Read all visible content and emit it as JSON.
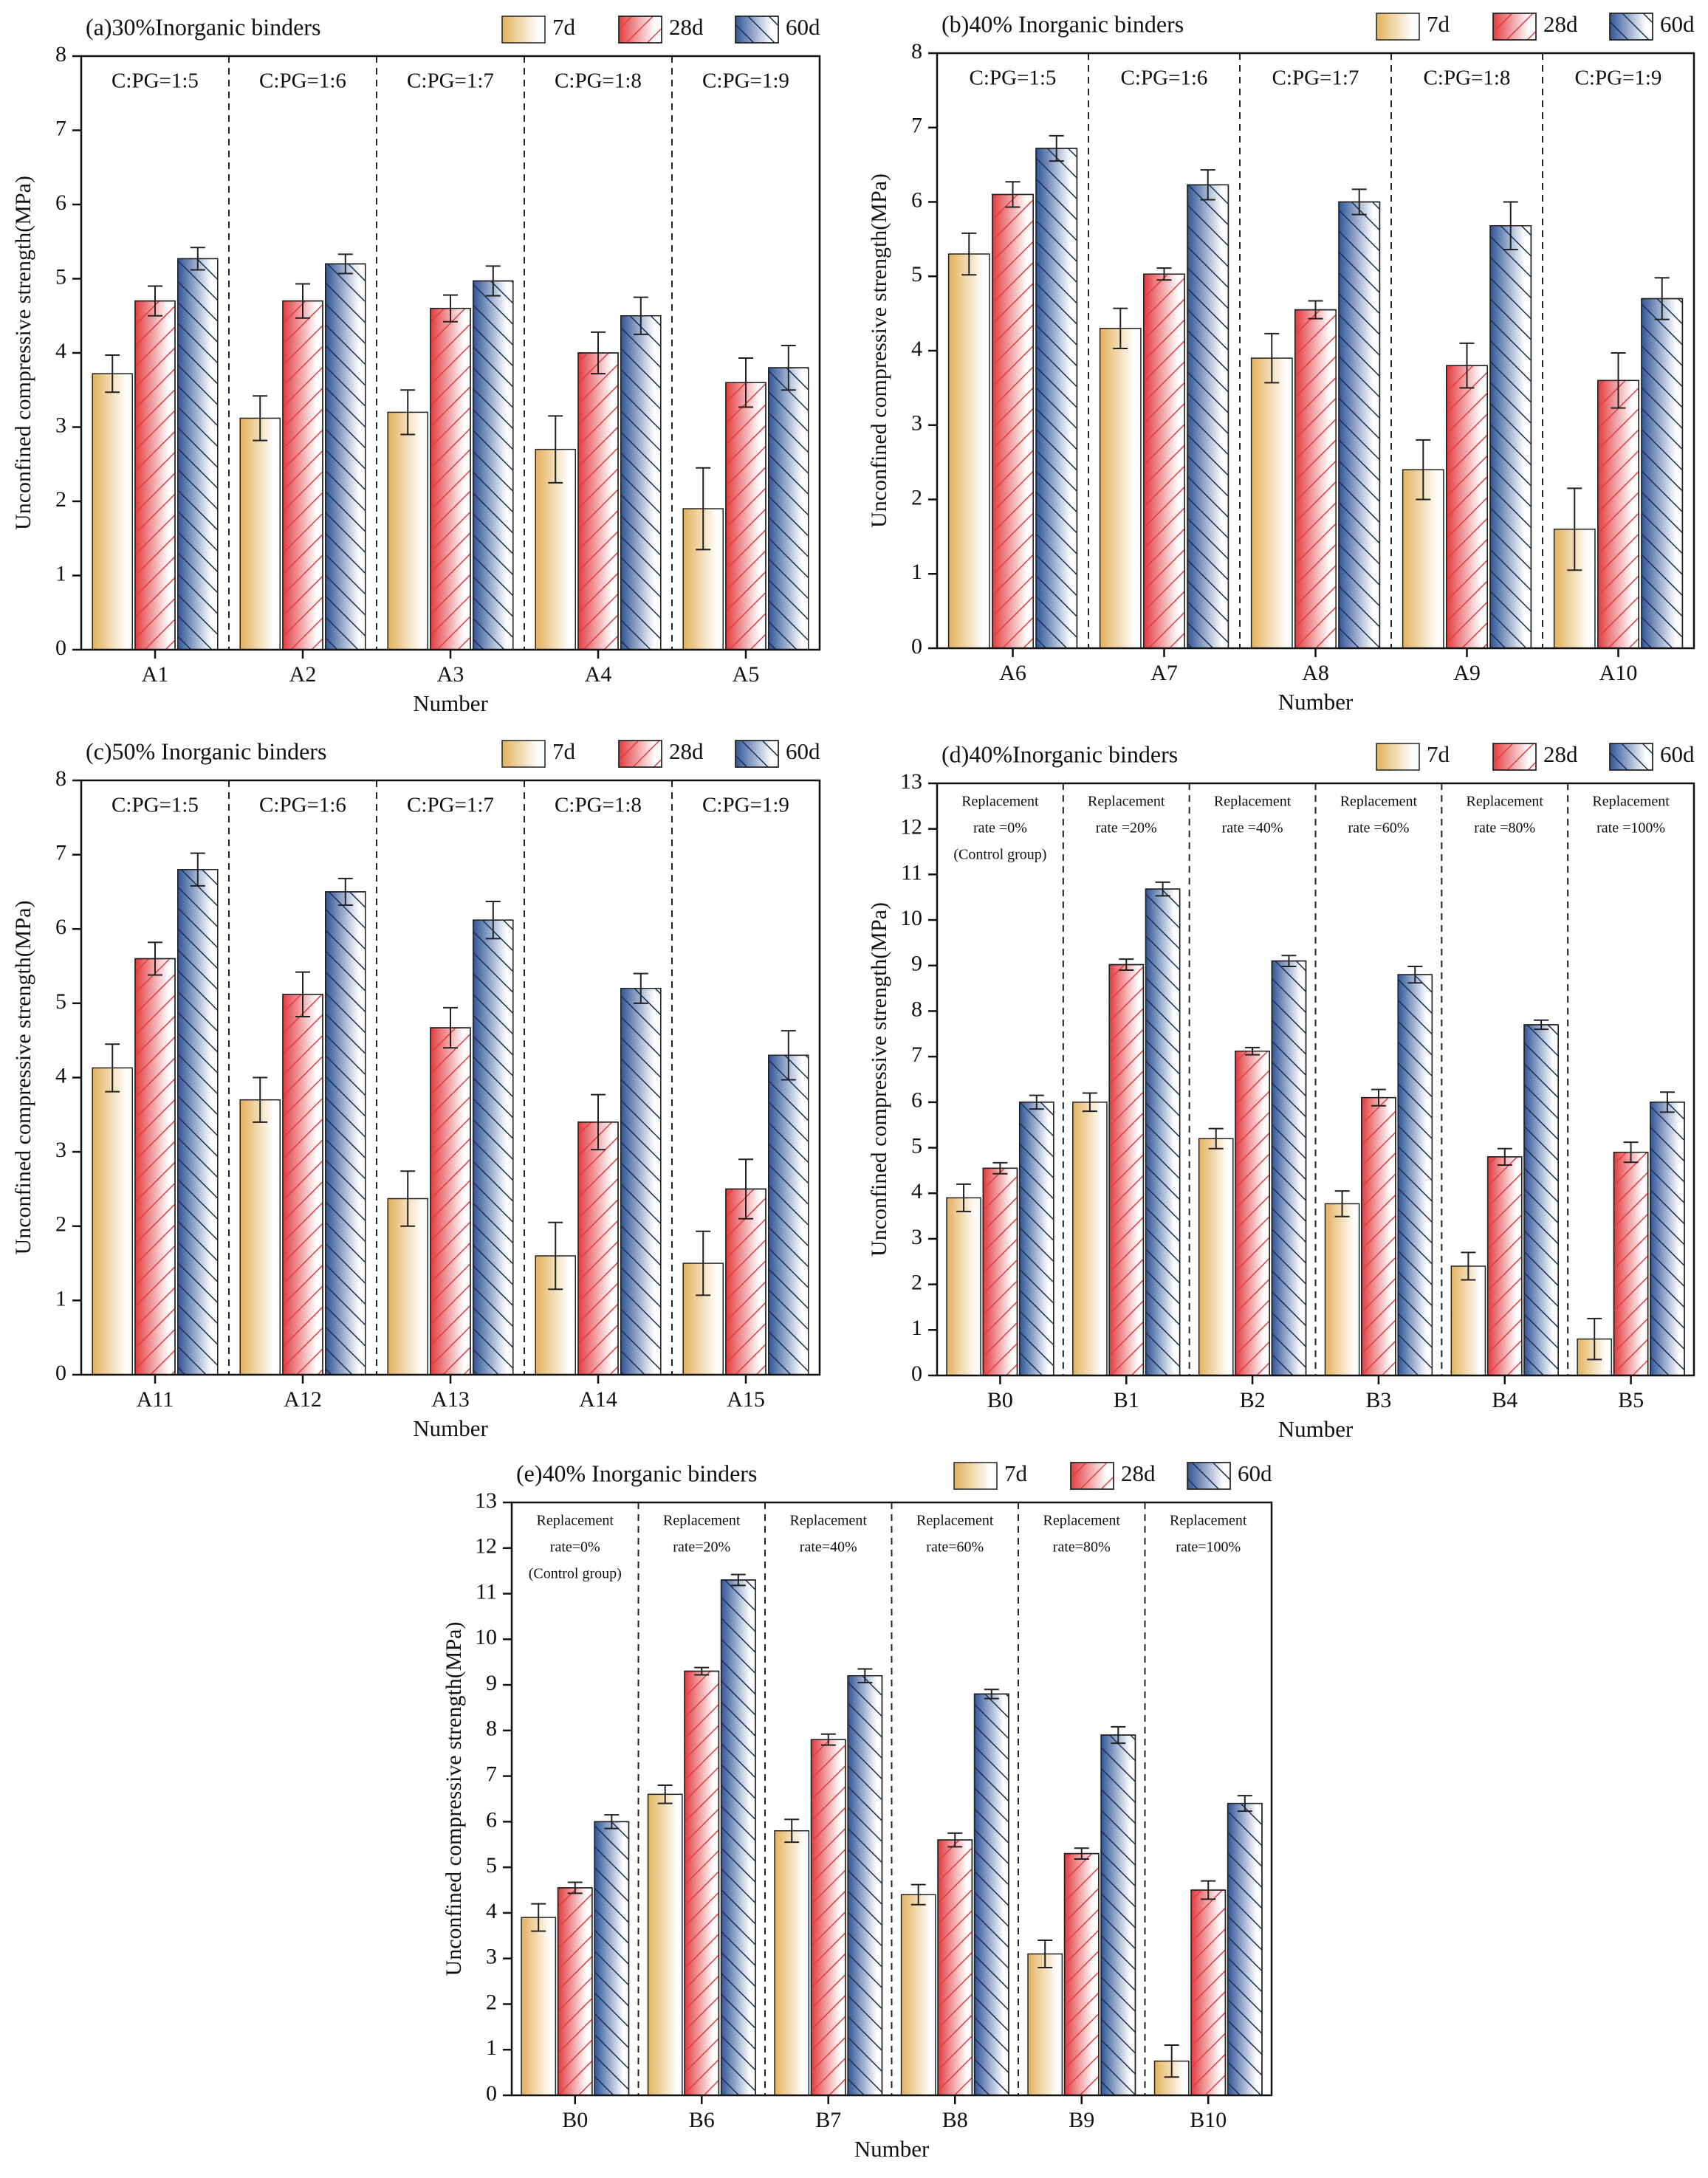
{
  "chart_data": [
    {
      "type": "bar",
      "title": "(a)30%Inorganic binders",
      "xlabel": "Number",
      "ylabel": "Unconfined compressive strength(MPa)",
      "categories": [
        "A1",
        "A2",
        "A3",
        "A4",
        "A5"
      ],
      "annotations": [
        [
          "C:PG=1:5"
        ],
        [
          "C:PG=1:6"
        ],
        [
          "C:PG=1:7"
        ],
        [
          "C:PG=1:8"
        ],
        [
          "C:PG=1:9"
        ]
      ],
      "series": [
        {
          "name": "7d",
          "color": "#e3b15c",
          "hatch": "none",
          "values": [
            3.72,
            3.12,
            3.2,
            2.7,
            1.9
          ],
          "errors": [
            0.25,
            0.3,
            0.3,
            0.45,
            0.55
          ]
        },
        {
          "name": "28d",
          "color": "#e23b3f",
          "hatch": "forward",
          "values": [
            4.7,
            4.7,
            4.6,
            4.0,
            3.6
          ],
          "errors": [
            0.2,
            0.23,
            0.18,
            0.28,
            0.33
          ]
        },
        {
          "name": "60d",
          "color": "#2f5597",
          "hatch": "back",
          "values": [
            5.27,
            5.2,
            4.97,
            4.5,
            3.8
          ],
          "errors": [
            0.15,
            0.13,
            0.2,
            0.25,
            0.3
          ]
        }
      ],
      "ylim": [
        0,
        8
      ],
      "yticks": [
        0,
        1,
        2,
        3,
        4,
        5,
        6,
        7,
        8
      ]
    },
    {
      "type": "bar",
      "title": "(b)40% Inorganic binders",
      "xlabel": "Number",
      "ylabel": "Unconfined compressive strength(MPa)",
      "categories": [
        "A6",
        "A7",
        "A8",
        "A9",
        "A10"
      ],
      "annotations": [
        [
          "C:PG=1:5"
        ],
        [
          "C:PG=1:6"
        ],
        [
          "C:PG=1:7"
        ],
        [
          "C:PG=1:8"
        ],
        [
          "C:PG=1:9"
        ]
      ],
      "series": [
        {
          "name": "7d",
          "color": "#e3b15c",
          "hatch": "none",
          "values": [
            5.3,
            4.3,
            3.9,
            2.4,
            1.6
          ],
          "errors": [
            0.28,
            0.27,
            0.33,
            0.4,
            0.55
          ]
        },
        {
          "name": "28d",
          "color": "#e23b3f",
          "hatch": "forward",
          "values": [
            6.1,
            5.03,
            4.55,
            3.8,
            3.6
          ],
          "errors": [
            0.17,
            0.08,
            0.12,
            0.3,
            0.37
          ]
        },
        {
          "name": "60d",
          "color": "#2f5597",
          "hatch": "back",
          "values": [
            6.72,
            6.23,
            6.0,
            5.68,
            4.7
          ],
          "errors": [
            0.17,
            0.2,
            0.17,
            0.32,
            0.28
          ]
        }
      ],
      "ylim": [
        0,
        8
      ],
      "yticks": [
        0,
        1,
        2,
        3,
        4,
        5,
        6,
        7,
        8
      ]
    },
    {
      "type": "bar",
      "title": "(c)50% Inorganic binders",
      "xlabel": "Number",
      "ylabel": "Unconfined compressive strength(MPa)",
      "categories": [
        "A11",
        "A12",
        "A13",
        "A14",
        "A15"
      ],
      "annotations": [
        [
          "C:PG=1:5"
        ],
        [
          "C:PG=1:6"
        ],
        [
          "C:PG=1:7"
        ],
        [
          "C:PG=1:8"
        ],
        [
          "C:PG=1:9"
        ]
      ],
      "series": [
        {
          "name": "7d",
          "color": "#e3b15c",
          "hatch": "none",
          "values": [
            4.13,
            3.7,
            2.37,
            1.6,
            1.5
          ],
          "errors": [
            0.32,
            0.3,
            0.37,
            0.45,
            0.43
          ]
        },
        {
          "name": "28d",
          "color": "#e23b3f",
          "hatch": "forward",
          "values": [
            5.6,
            5.12,
            4.67,
            3.4,
            2.5
          ],
          "errors": [
            0.22,
            0.3,
            0.27,
            0.37,
            0.4
          ]
        },
        {
          "name": "60d",
          "color": "#2f5597",
          "hatch": "back",
          "values": [
            6.8,
            6.5,
            6.12,
            5.2,
            4.3
          ],
          "errors": [
            0.22,
            0.18,
            0.25,
            0.2,
            0.33
          ]
        }
      ],
      "ylim": [
        0,
        8
      ],
      "yticks": [
        0,
        1,
        2,
        3,
        4,
        5,
        6,
        7,
        8
      ]
    },
    {
      "type": "bar",
      "title": "(d)40%Inorganic binders",
      "xlabel": "Number",
      "ylabel": "Unconfined compressive strength(MPa)",
      "categories": [
        "B0",
        "B1",
        "B2",
        "B3",
        "B4",
        "B5"
      ],
      "annotations": [
        [
          "Replacement",
          "rate =0%",
          "(Control group)"
        ],
        [
          "Replacement",
          "rate =20%"
        ],
        [
          "Replacement",
          "rate =40%"
        ],
        [
          "Replacement",
          "rate =60%"
        ],
        [
          "Replacement",
          "rate =80%"
        ],
        [
          "Replacement",
          "rate =100%"
        ]
      ],
      "series": [
        {
          "name": "7d",
          "color": "#e3b15c",
          "hatch": "none",
          "values": [
            3.9,
            6.0,
            5.2,
            3.77,
            2.4,
            0.8
          ],
          "errors": [
            0.3,
            0.2,
            0.22,
            0.28,
            0.3,
            0.45
          ]
        },
        {
          "name": "28d",
          "color": "#e23b3f",
          "hatch": "forward",
          "values": [
            4.55,
            9.02,
            7.12,
            6.1,
            4.8,
            4.9
          ],
          "errors": [
            0.12,
            0.12,
            0.08,
            0.18,
            0.18,
            0.22
          ]
        },
        {
          "name": "60d",
          "color": "#2f5597",
          "hatch": "back",
          "values": [
            6.0,
            10.68,
            9.1,
            8.8,
            7.7,
            6.0
          ],
          "errors": [
            0.15,
            0.15,
            0.12,
            0.18,
            0.1,
            0.22
          ]
        }
      ],
      "ylim": [
        0,
        13
      ],
      "yticks": [
        0,
        1,
        2,
        3,
        4,
        5,
        6,
        7,
        8,
        9,
        10,
        11,
        12,
        13
      ]
    },
    {
      "type": "bar",
      "title": "(e)40% Inorganic binders",
      "xlabel": "Number",
      "ylabel": "Unconfined compressive strength(MPa)",
      "categories": [
        "B0",
        "B6",
        "B7",
        "B8",
        "B9",
        "B10"
      ],
      "annotations": [
        [
          "Replacement",
          "rate=0%",
          "(Control group)"
        ],
        [
          "Replacement",
          "rate=20%"
        ],
        [
          "Replacement",
          "rate=40%"
        ],
        [
          "Replacement",
          "rate=60%"
        ],
        [
          "Replacement",
          "rate=80%"
        ],
        [
          "Replacement",
          "rate=100%"
        ]
      ],
      "series": [
        {
          "name": "7d",
          "color": "#e3b15c",
          "hatch": "none",
          "values": [
            3.9,
            6.6,
            5.8,
            4.4,
            3.1,
            0.75
          ],
          "errors": [
            0.3,
            0.2,
            0.25,
            0.22,
            0.3,
            0.35
          ]
        },
        {
          "name": "28d",
          "color": "#e23b3f",
          "hatch": "forward",
          "values": [
            4.55,
            9.3,
            7.8,
            5.6,
            5.3,
            4.5
          ],
          "errors": [
            0.12,
            0.08,
            0.12,
            0.15,
            0.12,
            0.2
          ]
        },
        {
          "name": "60d",
          "color": "#2f5597",
          "hatch": "back",
          "values": [
            6.0,
            11.3,
            9.2,
            8.8,
            7.9,
            6.4
          ],
          "errors": [
            0.15,
            0.12,
            0.15,
            0.1,
            0.18,
            0.17
          ]
        }
      ],
      "ylim": [
        0,
        13
      ],
      "yticks": [
        0,
        1,
        2,
        3,
        4,
        5,
        6,
        7,
        8,
        9,
        10,
        11,
        12,
        13
      ]
    }
  ]
}
